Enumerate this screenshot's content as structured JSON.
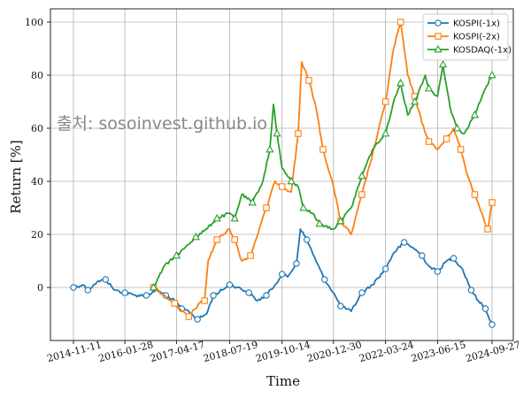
{
  "watermark": "출처: sosoinvest.github.io",
  "chart_data": {
    "type": "line",
    "title": "",
    "xlabel": "Time",
    "ylabel": "Return [%]",
    "x_ticks": [
      "2014-11-11",
      "2016-01-28",
      "2017-04-17",
      "2018-07-19",
      "2019-10-14",
      "2020-12-30",
      "2022-03-24",
      "2023-06-15",
      "2024-09-27"
    ],
    "x_range": [
      "2014-11-11",
      "2024-09-27"
    ],
    "ylim": [
      -20,
      105
    ],
    "y_ticks": [
      0,
      20,
      40,
      60,
      80,
      100
    ],
    "grid": true,
    "legend_position": "top-right",
    "series": [
      {
        "name": "KOSPI(-1x)",
        "color": "#1f77b4",
        "marker": "circle",
        "start": "2014-11-11",
        "points": [
          [
            "2014-11-11",
            0
          ],
          [
            "2015-02-01",
            1
          ],
          [
            "2015-03-15",
            -1
          ],
          [
            "2015-06-01",
            2
          ],
          [
            "2015-08-15",
            3
          ],
          [
            "2015-11-01",
            -1
          ],
          [
            "2016-01-28",
            -2
          ],
          [
            "2016-05-01",
            -3
          ],
          [
            "2016-08-01",
            -3
          ],
          [
            "2016-11-01",
            -1
          ],
          [
            "2017-01-15",
            -3
          ],
          [
            "2017-04-01",
            -5
          ],
          [
            "2017-06-01",
            -8
          ],
          [
            "2017-08-01",
            -9
          ],
          [
            "2017-10-15",
            -12
          ],
          [
            "2018-01-01",
            -10
          ],
          [
            "2018-03-01",
            -3
          ],
          [
            "2018-05-15",
            -1
          ],
          [
            "2018-07-19",
            1
          ],
          [
            "2018-10-01",
            0
          ],
          [
            "2019-01-01",
            -2
          ],
          [
            "2019-03-15",
            -5
          ],
          [
            "2019-06-01",
            -3
          ],
          [
            "2019-08-15",
            1
          ],
          [
            "2019-10-14",
            5
          ],
          [
            "2019-12-01",
            4
          ],
          [
            "2020-02-15",
            9
          ],
          [
            "2020-03-20",
            22
          ],
          [
            "2020-05-15",
            18
          ],
          [
            "2020-08-01",
            10
          ],
          [
            "2020-10-15",
            3
          ],
          [
            "2020-12-30",
            -2
          ],
          [
            "2021-03-01",
            -7
          ],
          [
            "2021-06-01",
            -9
          ],
          [
            "2021-09-01",
            -2
          ],
          [
            "2021-12-01",
            1
          ],
          [
            "2022-03-24",
            7
          ],
          [
            "2022-06-01",
            13
          ],
          [
            "2022-09-01",
            17
          ],
          [
            "2022-11-15",
            15
          ],
          [
            "2023-02-01",
            12
          ],
          [
            "2023-04-01",
            8
          ],
          [
            "2023-06-15",
            6
          ],
          [
            "2023-09-01",
            10
          ],
          [
            "2023-11-01",
            11
          ],
          [
            "2024-01-15",
            7
          ],
          [
            "2024-04-01",
            -1
          ],
          [
            "2024-06-01",
            -5
          ],
          [
            "2024-08-01",
            -8
          ],
          [
            "2024-09-27",
            -14
          ]
        ]
      },
      {
        "name": "KOSPI(-2x)",
        "color": "#ff7f0e",
        "marker": "square",
        "start": "2016-10-01",
        "points": [
          [
            "2016-10-01",
            0
          ],
          [
            "2017-01-01",
            -3
          ],
          [
            "2017-04-01",
            -6
          ],
          [
            "2017-06-01",
            -9
          ],
          [
            "2017-08-01",
            -11
          ],
          [
            "2017-11-01",
            -6
          ],
          [
            "2017-12-15",
            -5
          ],
          [
            "2018-01-15",
            10
          ],
          [
            "2018-04-01",
            18
          ],
          [
            "2018-07-19",
            22
          ],
          [
            "2018-09-01",
            18
          ],
          [
            "2018-11-01",
            10
          ],
          [
            "2019-01-15",
            12
          ],
          [
            "2019-04-01",
            22
          ],
          [
            "2019-06-01",
            30
          ],
          [
            "2019-08-15",
            40
          ],
          [
            "2019-10-14",
            38
          ],
          [
            "2020-01-01",
            36
          ],
          [
            "2020-03-01",
            58
          ],
          [
            "2020-04-01",
            85
          ],
          [
            "2020-06-01",
            78
          ],
          [
            "2020-08-01",
            68
          ],
          [
            "2020-10-01",
            52
          ],
          [
            "2020-12-30",
            38
          ],
          [
            "2021-03-01",
            25
          ],
          [
            "2021-06-01",
            20
          ],
          [
            "2021-09-01",
            35
          ],
          [
            "2021-12-01",
            50
          ],
          [
            "2022-03-24",
            70
          ],
          [
            "2022-06-01",
            90
          ],
          [
            "2022-08-01",
            100
          ],
          [
            "2022-10-01",
            80
          ],
          [
            "2022-12-01",
            72
          ],
          [
            "2023-02-01",
            62
          ],
          [
            "2023-04-01",
            55
          ],
          [
            "2023-06-15",
            52
          ],
          [
            "2023-09-01",
            56
          ],
          [
            "2023-11-01",
            60
          ],
          [
            "2024-01-01",
            52
          ],
          [
            "2024-03-01",
            42
          ],
          [
            "2024-05-01",
            35
          ],
          [
            "2024-07-01",
            28
          ],
          [
            "2024-08-20",
            22
          ],
          [
            "2024-09-27",
            32
          ]
        ]
      },
      {
        "name": "KOSDAQ(-1x)",
        "color": "#2ca02c",
        "marker": "triangle",
        "start": "2016-10-01",
        "points": [
          [
            "2016-10-01",
            0
          ],
          [
            "2017-01-01",
            8
          ],
          [
            "2017-04-17",
            12
          ],
          [
            "2017-07-01",
            15
          ],
          [
            "2017-10-01",
            19
          ],
          [
            "2018-01-01",
            22
          ],
          [
            "2018-04-01",
            26
          ],
          [
            "2018-07-19",
            28
          ],
          [
            "2018-09-01",
            26
          ],
          [
            "2018-11-01",
            35
          ],
          [
            "2019-02-01",
            32
          ],
          [
            "2019-05-01",
            40
          ],
          [
            "2019-07-01",
            52
          ],
          [
            "2019-08-01",
            69
          ],
          [
            "2019-09-01",
            58
          ],
          [
            "2019-10-14",
            45
          ],
          [
            "2020-01-01",
            40
          ],
          [
            "2020-03-01",
            38
          ],
          [
            "2020-04-15",
            30
          ],
          [
            "2020-07-01",
            28
          ],
          [
            "2020-09-01",
            24
          ],
          [
            "2020-12-30",
            22
          ],
          [
            "2021-03-01",
            25
          ],
          [
            "2021-06-01",
            30
          ],
          [
            "2021-09-01",
            42
          ],
          [
            "2021-12-01",
            52
          ],
          [
            "2022-03-24",
            58
          ],
          [
            "2022-06-01",
            70
          ],
          [
            "2022-08-01",
            77
          ],
          [
            "2022-10-01",
            65
          ],
          [
            "2022-12-01",
            70
          ],
          [
            "2023-03-01",
            80
          ],
          [
            "2023-04-01",
            75
          ],
          [
            "2023-06-15",
            72
          ],
          [
            "2023-08-01",
            84
          ],
          [
            "2023-10-01",
            68
          ],
          [
            "2023-12-01",
            60
          ],
          [
            "2024-02-01",
            58
          ],
          [
            "2024-05-01",
            65
          ],
          [
            "2024-08-01",
            75
          ],
          [
            "2024-09-27",
            80
          ]
        ]
      }
    ]
  }
}
